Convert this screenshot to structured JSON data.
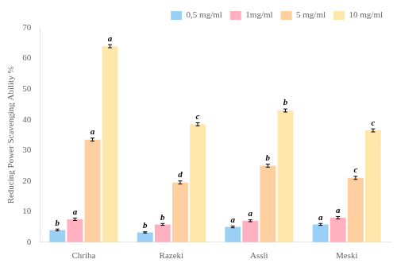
{
  "chart_data": {
    "type": "bar",
    "categories": [
      "Chriha",
      "Razeki",
      "Assli",
      "Meski"
    ],
    "series": [
      {
        "name": "0,5 mg/ml",
        "values": [
          4.0,
          3.2,
          5.0,
          5.8
        ],
        "errors": [
          0.3,
          0.2,
          0.3,
          0.3
        ],
        "annotations": [
          "b",
          "b",
          "a",
          "a"
        ]
      },
      {
        "name": "1mg/ml",
        "values": [
          7.5,
          5.8,
          7.0,
          8.0
        ],
        "errors": [
          0.4,
          0.3,
          0.3,
          0.4
        ],
        "annotations": [
          "a",
          "b",
          "a",
          "a"
        ]
      },
      {
        "name": "5 mg/ml",
        "values": [
          33.5,
          19.5,
          25.0,
          21.0
        ],
        "errors": [
          0.5,
          0.5,
          0.5,
          0.5
        ],
        "annotations": [
          "a",
          "d",
          "b",
          "c"
        ]
      },
      {
        "name": "10 mg/ml",
        "values": [
          64.0,
          38.5,
          43.0,
          36.5
        ],
        "errors": [
          0.5,
          0.5,
          0.5,
          0.5
        ],
        "annotations": [
          "a",
          "c",
          "b",
          "c"
        ]
      }
    ],
    "ylabel": "Reducing Power Scavenging Ability %",
    "ylim": [
      0,
      70
    ],
    "yticks": [
      0,
      10,
      20,
      30,
      40,
      50,
      60,
      70
    ],
    "grid": false,
    "legend": "upper right"
  }
}
